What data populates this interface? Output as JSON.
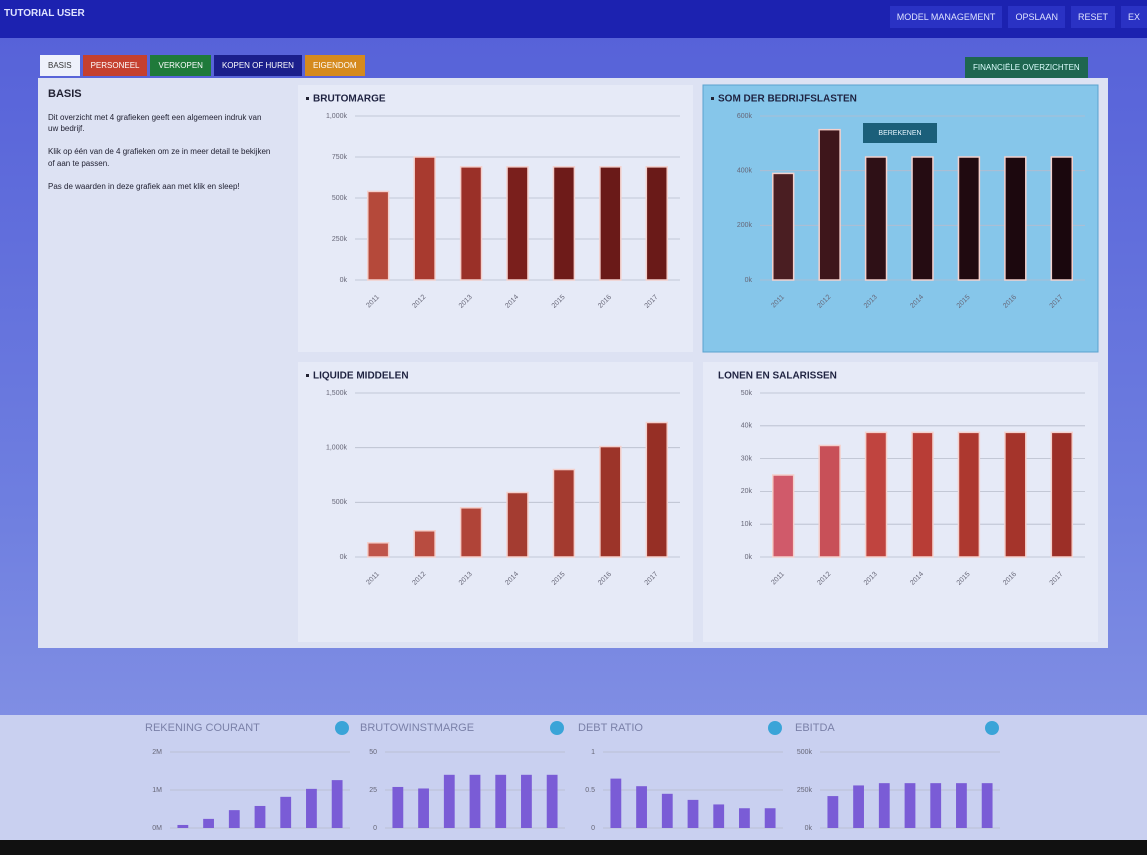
{
  "header": {
    "user": "TUTORIAL USER",
    "buttons": [
      "MODEL MANAGEMENT",
      "OPSLAAN",
      "RESET",
      "EX"
    ]
  },
  "tabs": [
    "BASIS",
    "PERSONEEL",
    "VERKOPEN",
    "KOPEN OF HUREN",
    "EIGENDOM"
  ],
  "overview_button": "FINANCIËLE OVERZICHTEN",
  "intro": {
    "title": "BASIS",
    "paragraphs": [
      "Dit overzicht met 4 grafieken geeft een algemeen indruk van uw bedrijf.",
      "Klik op één van de 4 grafieken om ze in meer detail te bekijken of aan te passen.",
      "Pas de waarden in deze grafiek aan met klik en sleep!"
    ]
  },
  "calc_button": "BEREKENEN",
  "charts": [
    {
      "type": "bar",
      "title": "BRUTOMARGE",
      "categories": [
        "2011",
        "2012",
        "2013",
        "2014",
        "2015",
        "2016",
        "2017"
      ],
      "values": [
        540,
        750,
        690,
        690,
        690,
        690,
        690
      ],
      "colors": [
        "#b5493a",
        "#a83a2f",
        "#9a3028",
        "#7a1f1c",
        "#6e1b19",
        "#6a1a18",
        "#6a1a18"
      ],
      "ylim": [
        0,
        1000
      ],
      "yticks": [
        {
          "value": 0,
          "label": "0k"
        },
        {
          "value": 250,
          "label": "250k"
        },
        {
          "value": 500,
          "label": "500k"
        },
        {
          "value": 750,
          "label": "750k"
        },
        {
          "value": 1000,
          "label": "1,000k"
        }
      ],
      "grid": true
    },
    {
      "type": "bar",
      "title": "SOM DER BEDRIJFSLASTEN",
      "categories": [
        "2011",
        "2012",
        "2013",
        "2014",
        "2015",
        "2016",
        "2017"
      ],
      "values": [
        390,
        550,
        450,
        450,
        450,
        450,
        450
      ],
      "colors": [
        "#4a1e22",
        "#3e161b",
        "#2e1016",
        "#250c12",
        "#200a10",
        "#1c080e",
        "#1a070d"
      ],
      "ylim": [
        0,
        600
      ],
      "yticks": [
        {
          "value": 0,
          "label": "0k"
        },
        {
          "value": 200,
          "label": "200k"
        },
        {
          "value": 400,
          "label": "400k"
        },
        {
          "value": 600,
          "label": "600k"
        }
      ],
      "grid": true
    },
    {
      "type": "bar",
      "title": "LIQUIDE MIDDELEN",
      "categories": [
        "2011",
        "2012",
        "2013",
        "2014",
        "2015",
        "2016",
        "2017"
      ],
      "values": [
        130,
        240,
        450,
        590,
        800,
        1010,
        1230
      ],
      "colors": [
        "#c0554a",
        "#b84c40",
        "#b04438",
        "#a43c31",
        "#a33a2f",
        "#9c3429",
        "#962f25"
      ],
      "ylim": [
        0,
        1500
      ],
      "yticks": [
        {
          "value": 0,
          "label": "0k"
        },
        {
          "value": 500,
          "label": "500k"
        },
        {
          "value": 1000,
          "label": "1,000k"
        },
        {
          "value": 1500,
          "label": "1,500k"
        }
      ],
      "grid": true
    },
    {
      "type": "bar",
      "title": "LONEN EN SALARISSEN",
      "categories": [
        "2011",
        "2012",
        "2013",
        "2014",
        "2015",
        "2016",
        "2017"
      ],
      "values": [
        25,
        34,
        38,
        38,
        38,
        38,
        38
      ],
      "colors": [
        "#d05a6a",
        "#c85058",
        "#c0443f",
        "#b83d36",
        "#ad382f",
        "#a5342b",
        "#9c2f27"
      ],
      "ylim": [
        0,
        50
      ],
      "yticks": [
        {
          "value": 0,
          "label": "0k"
        },
        {
          "value": 10,
          "label": "10k"
        },
        {
          "value": 20,
          "label": "20k"
        },
        {
          "value": 30,
          "label": "30k"
        },
        {
          "value": 40,
          "label": "40k"
        },
        {
          "value": 50,
          "label": "50k"
        }
      ],
      "grid": true
    }
  ],
  "kpis": [
    {
      "type": "bar",
      "title": "REKENING COURANT",
      "values": [
        0.08,
        0.24,
        0.47,
        0.58,
        0.82,
        1.03,
        1.26
      ],
      "color": "#7a5cd6",
      "ylim": [
        0,
        2
      ],
      "yticks": [
        {
          "value": 0,
          "label": "0M"
        },
        {
          "value": 1,
          "label": "1M"
        },
        {
          "value": 2,
          "label": "2M"
        }
      ],
      "grid": true
    },
    {
      "type": "bar",
      "title": "BRUTOWINSTMARGE",
      "values": [
        27,
        26,
        35,
        35,
        35,
        35,
        35
      ],
      "color": "#7a5cd6",
      "ylim": [
        0,
        50
      ],
      "yticks": [
        0,
        25,
        50
      ],
      "grid": true
    },
    {
      "type": "bar",
      "title": "DEBT RATIO",
      "values": [
        0.65,
        0.55,
        0.45,
        0.37,
        0.31,
        0.26,
        0.26
      ],
      "color": "#7a5cd6",
      "ylim": [
        0,
        1
      ],
      "yticks": [
        0,
        0.5,
        1
      ],
      "grid": true
    },
    {
      "type": "bar",
      "title": "EBITDA",
      "values": [
        210,
        280,
        295,
        295,
        295,
        295,
        295
      ],
      "color": "#7a5cd6",
      "ylim": [
        0,
        500
      ],
      "yticks": [
        {
          "value": 0,
          "label": "0k"
        },
        {
          "value": 250,
          "label": "250k"
        },
        {
          "value": 500,
          "label": "500k"
        }
      ],
      "grid": true
    }
  ]
}
